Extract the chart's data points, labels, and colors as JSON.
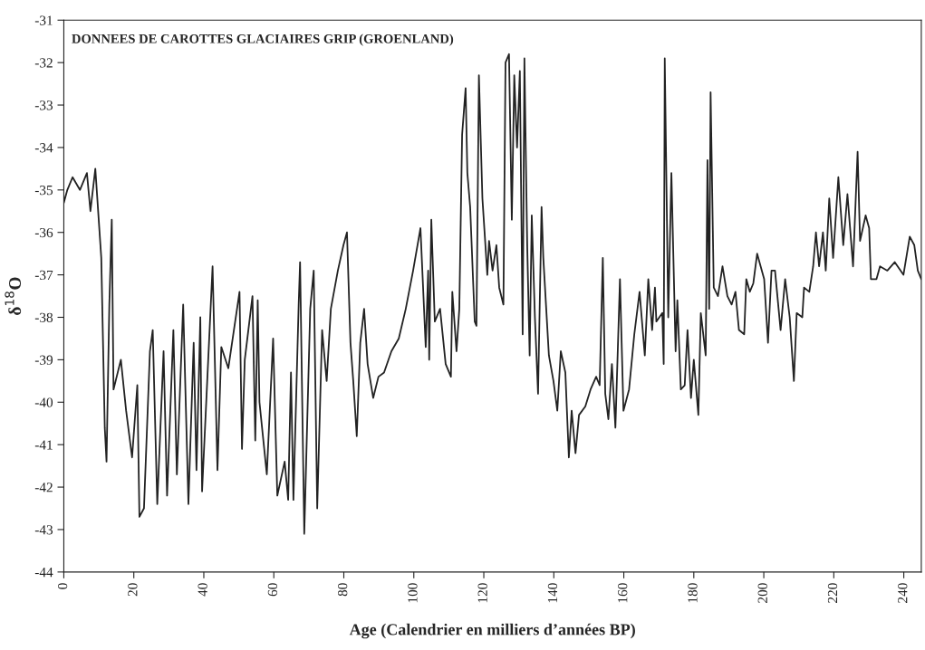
{
  "chart_data": {
    "type": "line",
    "title": "DONNEES DE CAROTTES GLACIAIRES GRIP (GROENLAND)",
    "xlabel": "Age (Calendrier en milliers d’années BP)",
    "ylabel": "δ$^{18}$O",
    "series": [
      {
        "color": "#222222",
        "x": [
          0,
          1,
          2.5,
          4.6,
          6.6,
          7.6,
          9,
          10.7,
          11.7,
          12.2,
          13,
          13.7,
          14.2,
          16.3,
          17.8,
          19.5,
          21,
          21.6,
          22.9,
          24.6,
          25.4,
          26.7,
          28.5,
          29.5,
          31.3,
          32.3,
          34.1,
          35.6,
          37.1,
          37.9,
          39,
          39.5,
          42.5,
          43.9,
          45,
          47,
          50.2,
          50.9,
          51.7,
          53.9,
          54.7,
          55.4,
          55.9,
          58,
          59.8,
          61,
          63.1,
          64.1,
          64.9,
          65.6,
          67.1,
          67.5,
          68.7,
          70.4,
          71.4,
          72.4,
          73.8,
          75.1,
          76.3,
          78.3,
          79.9,
          80.9,
          81.9,
          82.7,
          83.7,
          84.7,
          85.8,
          86.8,
          88.4,
          89.9,
          91.5,
          93.6,
          95.7,
          97.7,
          99.8,
          101.9,
          103.4,
          104.1,
          104.4,
          105,
          106,
          107.5,
          109.1,
          110.6,
          111,
          112.2,
          113,
          113.8,
          114.8,
          115.3,
          116.1,
          117.4,
          117.9,
          118.6,
          119.6,
          121,
          121.5,
          122.5,
          123.6,
          124.4,
          125.6,
          126.2,
          127.2,
          128,
          128.7,
          129.5,
          130.3,
          131.1,
          131.6,
          132.4,
          133.1,
          133.7,
          134.6,
          135.5,
          136.5,
          137,
          138.6,
          139.9,
          141,
          142,
          143.3,
          144.3,
          145.1,
          146.2,
          147.2,
          149,
          150.5,
          152.1,
          153.1,
          154,
          154.7,
          155.6,
          156.6,
          157.6,
          158.9,
          159.9,
          161.5,
          163,
          164.5,
          166,
          167,
          168.1,
          168.9,
          169.3,
          171,
          171.4,
          171.7,
          172.7,
          173.6,
          174.8,
          175.3,
          176.3,
          177.4,
          178.2,
          179.2,
          180,
          181.3,
          182,
          183.4,
          183.9,
          184.4,
          184.8,
          185.7,
          186.9,
          188.2,
          189.6,
          190.8,
          191.9,
          192.9,
          194.4,
          195,
          196,
          197,
          198.1,
          199.1,
          200.1,
          201.2,
          202.2,
          203.2,
          204.8,
          206.1,
          207.4,
          208.6,
          209.4,
          211,
          211.5,
          213,
          214.1,
          214.9,
          215.8,
          216.9,
          217.7,
          218.7,
          219.8,
          221.3,
          222.7,
          223.9,
          225.5,
          226.8,
          227.5,
          229.1,
          230.1,
          230.6,
          232.2,
          233.2,
          235.3,
          237.4,
          239.9,
          241.7,
          243,
          244,
          245
        ],
        "values": [
          -35.3,
          -35.0,
          -34.7,
          -35.0,
          -34.6,
          -35.5,
          -34.5,
          -36.6,
          -40.6,
          -41.4,
          -37.7,
          -35.7,
          -39.7,
          -39.0,
          -40.2,
          -41.3,
          -39.6,
          -42.7,
          -42.5,
          -38.8,
          -38.3,
          -42.4,
          -38.8,
          -42.2,
          -38.3,
          -41.7,
          -37.7,
          -42.4,
          -38.6,
          -41.6,
          -38.0,
          -42.1,
          -36.8,
          -41.6,
          -38.7,
          -39.2,
          -37.4,
          -41.1,
          -39.0,
          -37.5,
          -40.9,
          -37.6,
          -40.0,
          -41.7,
          -38.5,
          -42.2,
          -41.4,
          -42.3,
          -39.3,
          -42.3,
          -37.7,
          -36.7,
          -43.1,
          -37.8,
          -36.9,
          -42.5,
          -38.3,
          -39.5,
          -37.8,
          -36.9,
          -36.3,
          -36.0,
          -38.6,
          -39.5,
          -40.8,
          -38.6,
          -37.8,
          -39.1,
          -39.9,
          -39.4,
          -39.3,
          -38.8,
          -38.5,
          -37.8,
          -36.9,
          -35.9,
          -38.7,
          -36.9,
          -39.0,
          -35.7,
          -38.1,
          -37.8,
          -39.1,
          -39.4,
          -37.4,
          -38.8,
          -37.8,
          -33.7,
          -32.6,
          -34.6,
          -35.4,
          -38.1,
          -38.2,
          -32.3,
          -35.2,
          -37.0,
          -36.2,
          -36.9,
          -36.3,
          -37.3,
          -37.7,
          -32.0,
          -31.8,
          -35.7,
          -32.3,
          -34.0,
          -32.2,
          -38.4,
          -31.9,
          -36.3,
          -38.9,
          -35.6,
          -38.0,
          -39.8,
          -35.4,
          -36.6,
          -38.9,
          -39.5,
          -40.2,
          -38.8,
          -39.3,
          -41.3,
          -40.2,
          -41.2,
          -40.3,
          -40.1,
          -39.7,
          -39.4,
          -39.6,
          -36.6,
          -39.8,
          -40.4,
          -39.1,
          -40.6,
          -37.1,
          -40.2,
          -39.7,
          -38.4,
          -37.4,
          -38.9,
          -37.1,
          -38.3,
          -37.3,
          -38.1,
          -37.9,
          -39.1,
          -31.9,
          -38.0,
          -34.6,
          -38.8,
          -37.6,
          -39.7,
          -39.6,
          -38.3,
          -39.9,
          -39.0,
          -40.3,
          -37.9,
          -38.9,
          -34.3,
          -37.8,
          -32.7,
          -37.3,
          -37.5,
          -36.8,
          -37.5,
          -37.7,
          -37.4,
          -38.3,
          -38.4,
          -37.1,
          -37.4,
          -37.2,
          -36.5,
          -36.8,
          -37.1,
          -38.6,
          -36.9,
          -36.9,
          -38.3,
          -37.1,
          -38.0,
          -39.5,
          -37.9,
          -38.0,
          -37.3,
          -37.4,
          -36.8,
          -36.0,
          -36.8,
          -36.0,
          -36.9,
          -35.2,
          -36.6,
          -34.7,
          -36.3,
          -35.1,
          -36.8,
          -34.1,
          -36.2,
          -35.6,
          -35.9,
          -37.1,
          -37.1,
          -36.8,
          -36.9,
          -36.7,
          -37.0,
          -36.1,
          -36.3,
          -36.9,
          -37.1
        ]
      }
    ],
    "xlim": [
      0,
      245
    ],
    "xticks": [
      0,
      20,
      40,
      60,
      80,
      100,
      120,
      140,
      160,
      180,
      200,
      220,
      240
    ],
    "ylim": [
      -44,
      -31
    ],
    "yticks": [
      -44,
      -43,
      -42,
      -41,
      -40,
      -39,
      -38,
      -37,
      -36,
      -35,
      -34,
      -33,
      -32,
      -31
    ],
    "grid": false,
    "line_style": "solid",
    "marker": "none"
  }
}
